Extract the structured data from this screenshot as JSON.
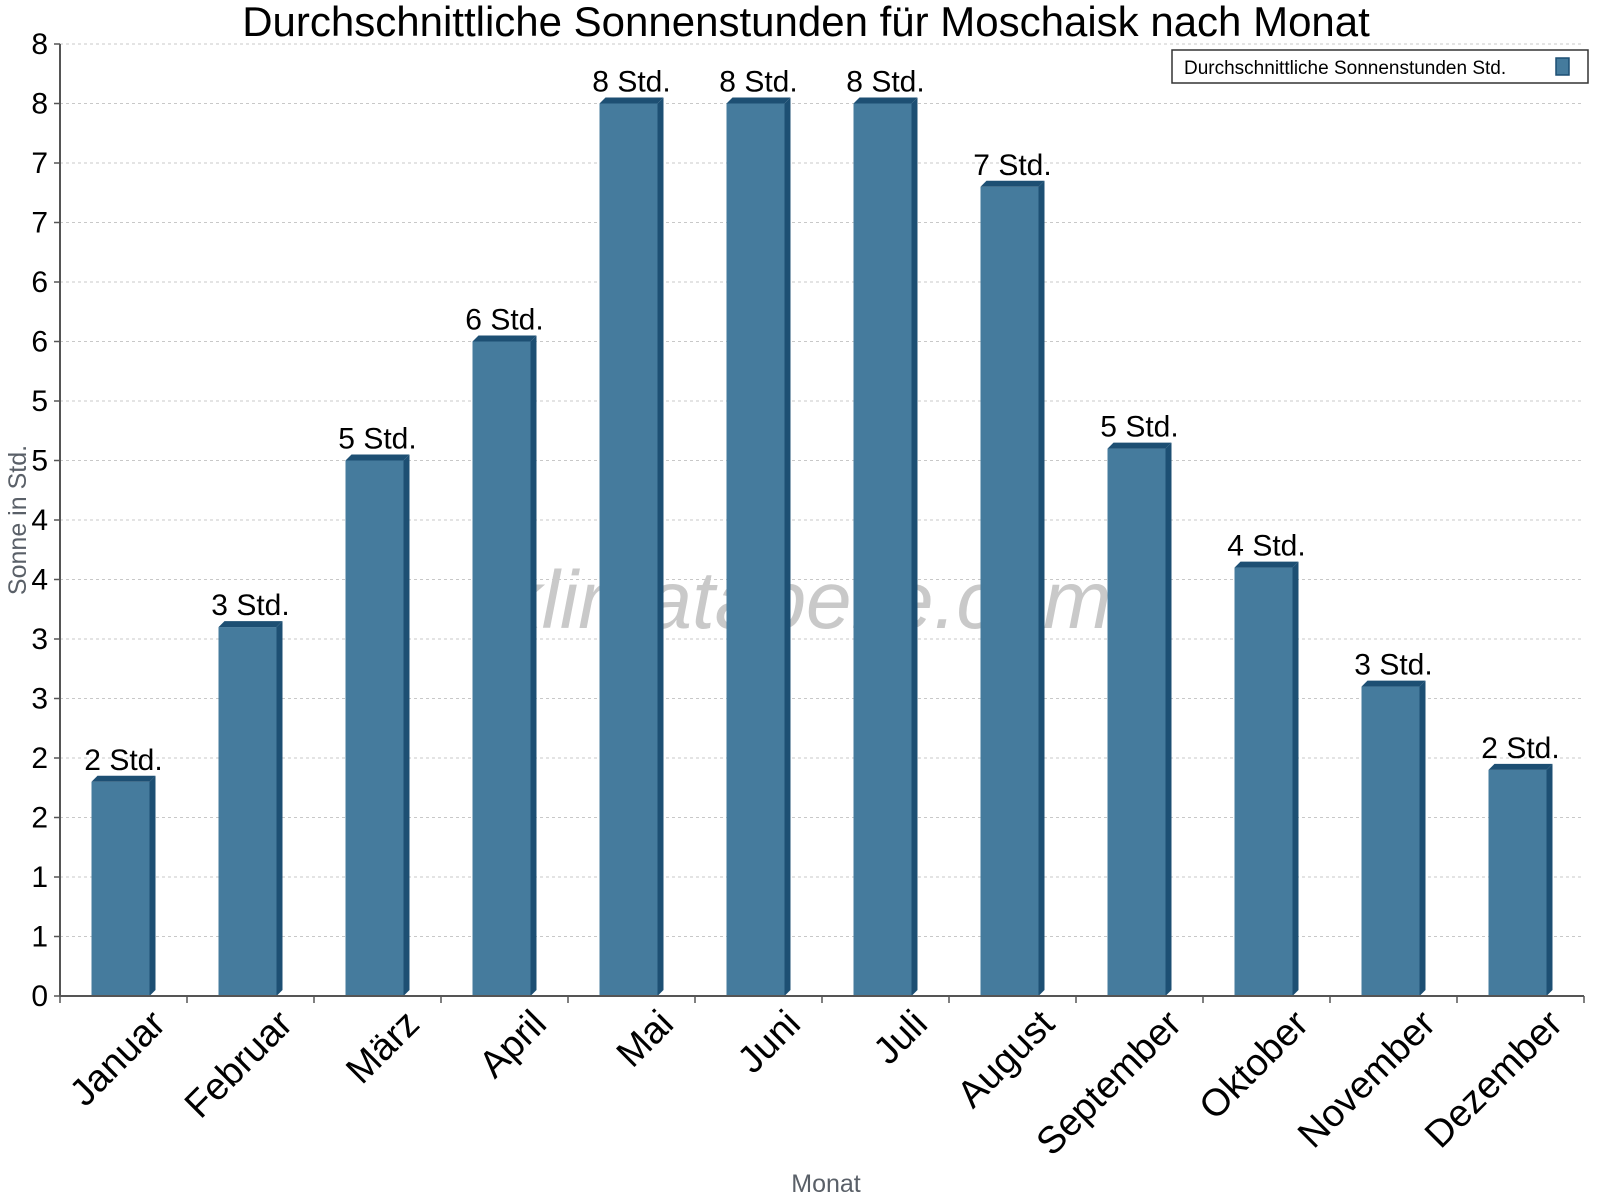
{
  "chart_data": {
    "type": "bar",
    "title": "Durchschnittliche Sonnenstunden für Moschaisk nach Monat",
    "xlabel": "Monat",
    "ylabel": "Sonne in Std.",
    "categories": [
      "Januar",
      "Februar",
      "März",
      "April",
      "Mai",
      "Juni",
      "Juli",
      "August",
      "September",
      "Oktober",
      "November",
      "Dezember"
    ],
    "series": [
      {
        "name": "Durchschnittliche Sonnenstunden Std.",
        "values": [
          1.8,
          3.1,
          4.5,
          5.5,
          7.5,
          7.5,
          7.5,
          6.8,
          4.6,
          3.6,
          2.6,
          1.9
        ],
        "labels": [
          "2 Std.",
          "3 Std.",
          "5 Std.",
          "6 Std.",
          "8 Std.",
          "8 Std.",
          "8 Std.",
          "7 Std.",
          "5 Std.",
          "4 Std.",
          "3 Std.",
          "2 Std."
        ]
      }
    ],
    "ylim": [
      0,
      8
    ],
    "yticks": [
      0,
      0.5,
      1,
      1.5,
      2,
      2.5,
      3,
      3.5,
      4,
      4.5,
      5,
      5.5,
      6,
      6.5,
      7,
      7.5,
      8
    ],
    "ytick_labels": [
      "0",
      "1",
      "1",
      "2",
      "2",
      "3",
      "3",
      "4",
      "4",
      "5",
      "5",
      "6",
      "6",
      "7",
      "7",
      "8",
      "8"
    ],
    "grid": true,
    "legend_position": "top-right",
    "colors": {
      "bar": "#457b9d",
      "bar_side": "#1d4f73",
      "grid": "#c8c8c8",
      "axis": "#555555"
    }
  },
  "watermark": "klimatabelle.com"
}
